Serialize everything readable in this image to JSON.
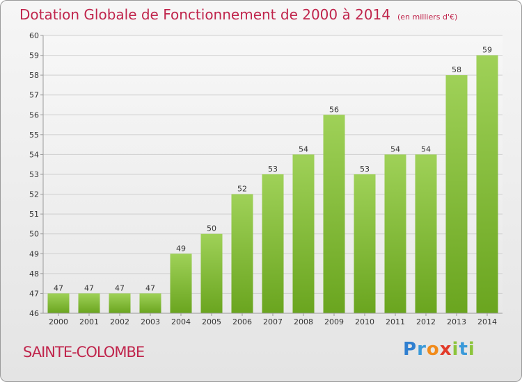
{
  "title": "Dotation Globale de Fonctionnement de 2000 à 2014",
  "unit": "(en milliers d'€)",
  "commune": "SAINTE-COLOMBE",
  "logo": {
    "text": "Proxiti",
    "letters": [
      {
        "ch": "P",
        "color": "#2f7fd0"
      },
      {
        "ch": "r",
        "color": "#3b9ad9"
      },
      {
        "ch": "o",
        "color": "#f18b1b"
      },
      {
        "ch": "x",
        "color": "#e23b2a"
      },
      {
        "ch": "i",
        "color": "#8cc43c"
      },
      {
        "ch": "t",
        "color": "#3b9ad9"
      },
      {
        "ch": "i",
        "color": "#8cc43c"
      }
    ]
  },
  "colors": {
    "title": "#c0254c",
    "bar_top": "#9fd158",
    "bar_bottom": "#6aa51f",
    "grid": "#cfcfcf"
  },
  "chart_data": {
    "type": "bar",
    "title": "Dotation Globale de Fonctionnement de 2000 à 2014",
    "subtitle": "(en milliers d'€)",
    "xlabel": "",
    "ylabel": "",
    "categories": [
      "2000",
      "2001",
      "2002",
      "2003",
      "2004",
      "2005",
      "2006",
      "2007",
      "2008",
      "2009",
      "2010",
      "2011",
      "2012",
      "2013",
      "2014"
    ],
    "values": [
      47,
      47,
      47,
      47,
      49,
      50,
      52,
      53,
      54,
      56,
      53,
      54,
      54,
      58,
      59
    ],
    "ylim": [
      46,
      60
    ],
    "yticks": [
      46,
      47,
      48,
      49,
      50,
      51,
      52,
      53,
      54,
      55,
      56,
      57,
      58,
      59,
      60
    ],
    "grid": true,
    "data_labels": true
  }
}
